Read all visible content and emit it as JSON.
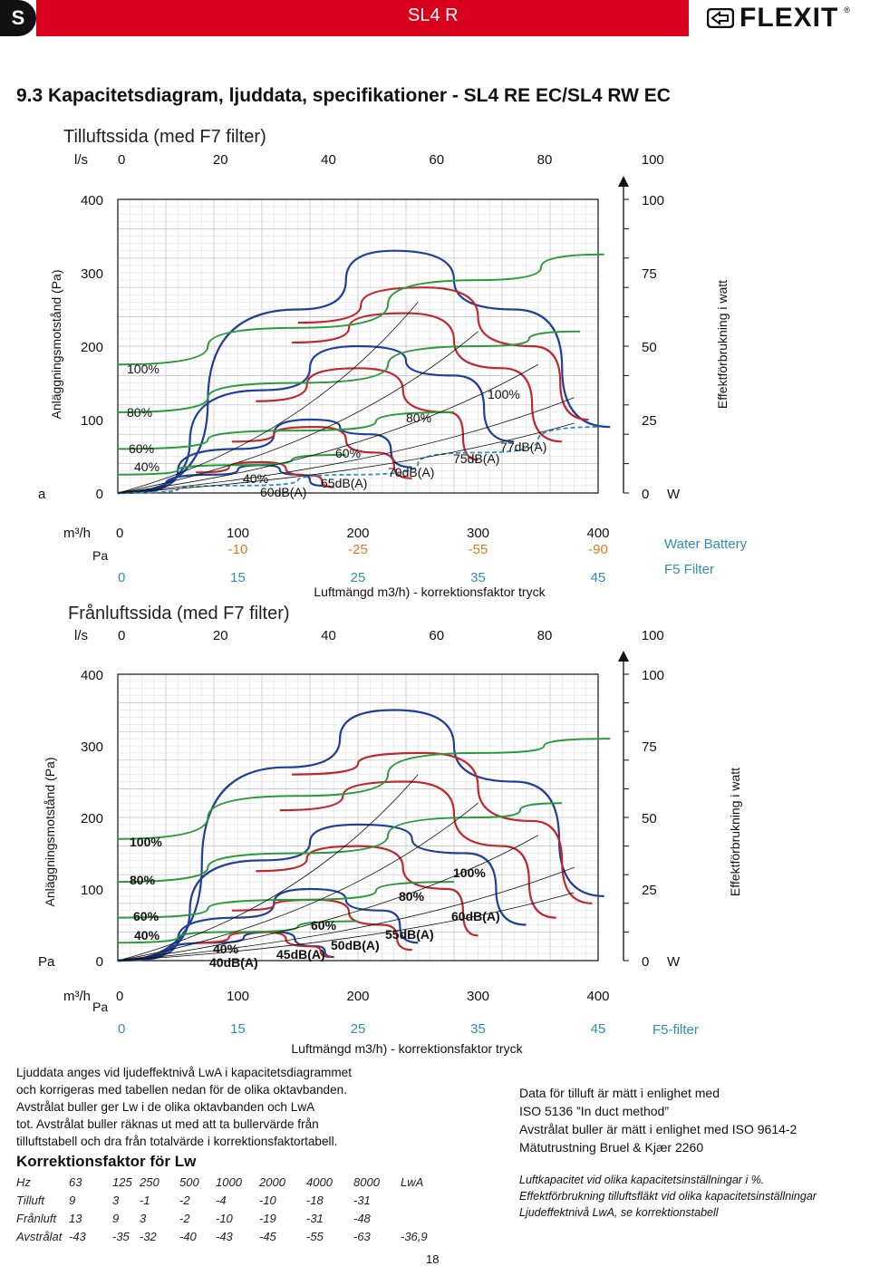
{
  "header": {
    "badge": "S",
    "product": "SL4 R",
    "brand": "FLEXIT",
    "reg": "®",
    "section_title": "9.3  Kapacitetsdiagram, ljuddata, specifikationer - SL4 RE EC/SL4 RW EC"
  },
  "colors": {
    "accent": "#d9001b",
    "green": "#2a9a3a",
    "red": "#c0282e",
    "blue": "#1f3f9a",
    "teal": "#2e8fb0"
  },
  "supply": {
    "subtitle": "Tilluftssida (med F7 filter)",
    "ls_label": "l/s",
    "ls_ticks": [
      "0",
      "20",
      "40",
      "60",
      "80",
      "100"
    ],
    "left_axis_title": "Anläggningsmotstånd (Pa)",
    "right_axis_title": "Effektförbrukning i watt",
    "pa_ticks": [
      "400",
      "300",
      "200",
      "100",
      "0"
    ],
    "pa_unit": "a",
    "w_ticks": [
      "100",
      "75",
      "50",
      "25",
      "0"
    ],
    "w_unit": "W",
    "m3h_label": "m³/h",
    "m3h_ticks": [
      "0",
      "100",
      "200",
      "300",
      "400"
    ],
    "battery_ticks": [
      "-10",
      "-25",
      "-55",
      "-90"
    ],
    "pa2_label": "Pa",
    "pa2_ticks": [
      "0",
      "15",
      "25",
      "35",
      "45"
    ],
    "xlabel": "Luftmängd m3/h) - korrektionsfaktor tryck",
    "legend_water": "Water Battery",
    "legend_filter": "F5 Filter",
    "fan_labels_left": [
      "100%",
      "80%",
      "60%",
      "40%"
    ],
    "fan_labels_right": [
      "100%",
      "80%",
      "60%",
      "40%"
    ],
    "sound_labels": [
      "77dB(A)",
      "75dB(A)",
      "70dB(A)",
      "65dB(A)",
      "60dB(A)"
    ]
  },
  "exhaust": {
    "subtitle": "Frånluftssida (med F7 filter)",
    "ls_label": "l/s",
    "ls_ticks": [
      "0",
      "20",
      "40",
      "60",
      "80",
      "100"
    ],
    "left_axis_title": "Anläggningsmotstånd (Pa)",
    "right_axis_title": "Effektförbrukning i watt",
    "pa_ticks": [
      "400",
      "300",
      "200",
      "100",
      "0"
    ],
    "pa_unit": "Pa",
    "w_ticks": [
      "100",
      "75",
      "50",
      "25",
      "0"
    ],
    "w_unit": "W",
    "m3h_label": "m³/h",
    "m3h_ticks": [
      "0",
      "100",
      "200",
      "300",
      "400"
    ],
    "pa2_label": "Pa",
    "pa2_ticks": [
      "0",
      "15",
      "25",
      "35",
      "45"
    ],
    "xlabel": "Luftmängd m3/h) - korrektionsfaktor tryck",
    "legend_filter": "F5-filter",
    "fan_labels_left": [
      "100%",
      "80%",
      "60%",
      "40%"
    ],
    "fan_labels_right": [
      "100%",
      "80%",
      "60%",
      "40%"
    ],
    "sound_labels": [
      "60dB(A)",
      "55dB(A)",
      "50dB(A)",
      "45dB(A)",
      "40dB(A)"
    ]
  },
  "chart_data": [
    {
      "type": "line",
      "title": "Tilluftssida (med F7 filter)",
      "xlabel": "Luftmängd m3/h) - korrektionsfaktor tryck",
      "ylabel": "Anläggningsmotstånd (Pa)",
      "y2label": "Effektförbrukning i watt",
      "xlim": [
        0,
        400
      ],
      "ylim": [
        0,
        400
      ],
      "y2lim": [
        0,
        100
      ],
      "series": [
        {
          "name": "100%",
          "kind": "fan",
          "color": "blue",
          "points": [
            [
              0,
              0
            ],
            [
              150,
              250
            ],
            [
              230,
              330
            ],
            [
              330,
              250
            ],
            [
              410,
              90
            ]
          ]
        },
        {
          "name": "80%",
          "kind": "fan",
          "color": "blue",
          "points": [
            [
              0,
              0
            ],
            [
              120,
              140
            ],
            [
              200,
              200
            ],
            [
              280,
              160
            ],
            [
              330,
              70
            ]
          ]
        },
        {
          "name": "60%",
          "kind": "fan",
          "color": "blue",
          "points": [
            [
              0,
              0
            ],
            [
              100,
              60
            ],
            [
              160,
              100
            ],
            [
              210,
              80
            ],
            [
              245,
              35
            ]
          ]
        },
        {
          "name": "40%",
          "kind": "fan",
          "color": "blue",
          "points": [
            [
              0,
              0
            ],
            [
              80,
              25
            ],
            [
              120,
              38
            ],
            [
              150,
              25
            ],
            [
              170,
              10
            ]
          ]
        },
        {
          "name": "77dB(A)",
          "kind": "sound",
          "color": "red",
          "points": [
            [
              150,
              232
            ],
            [
              255,
              280
            ],
            [
              345,
              200
            ],
            [
              392,
              100
            ]
          ]
        },
        {
          "name": "75dB(A)",
          "kind": "sound",
          "color": "red",
          "points": [
            [
              145,
              205
            ],
            [
              240,
              245
            ],
            [
              320,
              170
            ],
            [
              370,
              70
            ]
          ]
        },
        {
          "name": "70dB(A)",
          "kind": "sound",
          "color": "red",
          "points": [
            [
              115,
              125
            ],
            [
              200,
              170
            ],
            [
              275,
              110
            ],
            [
              300,
              45
            ]
          ]
        },
        {
          "name": "65dB(A)",
          "kind": "sound",
          "color": "red",
          "points": [
            [
              95,
              70
            ],
            [
              165,
              90
            ],
            [
              215,
              55
            ],
            [
              245,
              20
            ]
          ]
        },
        {
          "name": "60dB(A)",
          "kind": "sound",
          "color": "red",
          "points": [
            [
              65,
              28
            ],
            [
              120,
              42
            ],
            [
              160,
              24
            ],
            [
              180,
              8
            ]
          ]
        },
        {
          "name": "W 100%",
          "kind": "power",
          "color": "green",
          "points": [
            [
              0,
              175
            ],
            [
              150,
              225
            ],
            [
              300,
              290
            ],
            [
              405,
              325
            ]
          ]
        },
        {
          "name": "W 80%",
          "kind": "power",
          "color": "green",
          "points": [
            [
              0,
              110
            ],
            [
              150,
              150
            ],
            [
              300,
              200
            ],
            [
              385,
              220
            ]
          ]
        },
        {
          "name": "W 60%",
          "kind": "power",
          "color": "green",
          "points": [
            [
              0,
              60
            ],
            [
              150,
              85
            ],
            [
              280,
              110
            ]
          ]
        },
        {
          "name": "W 40%",
          "kind": "power",
          "color": "green",
          "points": [
            [
              0,
              25
            ],
            [
              100,
              38
            ],
            [
              190,
              52
            ]
          ]
        },
        {
          "name": "Water Battery",
          "kind": "system",
          "color": "teal",
          "points": [
            [
              0,
              0
            ],
            [
              100,
              10
            ],
            [
              200,
              25
            ],
            [
              300,
              55
            ],
            [
              400,
              90
            ]
          ]
        }
      ]
    },
    {
      "type": "line",
      "title": "Frånluftssida (med F7 filter)",
      "xlabel": "Luftmängd m3/h) - korrektionsfaktor tryck",
      "ylabel": "Anläggningsmotstånd (Pa)",
      "y2label": "Effektförbrukning i watt",
      "xlim": [
        0,
        400
      ],
      "ylim": [
        0,
        400
      ],
      "y2lim": [
        0,
        100
      ],
      "series": [
        {
          "name": "100%",
          "kind": "fan",
          "color": "blue",
          "points": [
            [
              0,
              0
            ],
            [
              140,
              270
            ],
            [
              230,
              350
            ],
            [
              330,
              250
            ],
            [
              405,
              90
            ]
          ]
        },
        {
          "name": "80%",
          "kind": "fan",
          "color": "blue",
          "points": [
            [
              0,
              0
            ],
            [
              120,
              140
            ],
            [
              200,
              190
            ],
            [
              290,
              150
            ],
            [
              340,
              50
            ]
          ]
        },
        {
          "name": "60%",
          "kind": "fan",
          "color": "blue",
          "points": [
            [
              0,
              0
            ],
            [
              100,
              60
            ],
            [
              160,
              100
            ],
            [
              220,
              70
            ],
            [
              250,
              25
            ]
          ]
        },
        {
          "name": "40%",
          "kind": "fan",
          "color": "blue",
          "points": [
            [
              0,
              0
            ],
            [
              80,
              25
            ],
            [
              130,
              40
            ],
            [
              165,
              20
            ],
            [
              180,
              5
            ]
          ]
        },
        {
          "name": "60dB(A)",
          "kind": "sound",
          "color": "red",
          "points": [
            [
              145,
              260
            ],
            [
              255,
              290
            ],
            [
              345,
              195
            ],
            [
              395,
              80
            ]
          ]
        },
        {
          "name": "55dB(A)",
          "kind": "sound",
          "color": "red",
          "points": [
            [
              135,
              210
            ],
            [
              240,
              250
            ],
            [
              320,
              160
            ],
            [
              365,
              60
            ]
          ]
        },
        {
          "name": "50dB(A)",
          "kind": "sound",
          "color": "red",
          "points": [
            [
              115,
              125
            ],
            [
              200,
              160
            ],
            [
              275,
              100
            ],
            [
              300,
              35
            ]
          ]
        },
        {
          "name": "45dB(A)",
          "kind": "sound",
          "color": "red",
          "points": [
            [
              95,
              70
            ],
            [
              165,
              85
            ],
            [
              220,
              50
            ],
            [
              245,
              15
            ]
          ]
        },
        {
          "name": "40dB(A)",
          "kind": "sound",
          "color": "red",
          "points": [
            [
              65,
              25
            ],
            [
              120,
              40
            ],
            [
              160,
              20
            ],
            [
              178,
              5
            ]
          ]
        },
        {
          "name": "W 100%",
          "kind": "power",
          "color": "green",
          "points": [
            [
              0,
              170
            ],
            [
              150,
              230
            ],
            [
              300,
              290
            ],
            [
              410,
              310
            ]
          ]
        },
        {
          "name": "W 80%",
          "kind": "power",
          "color": "green",
          "points": [
            [
              0,
              110
            ],
            [
              150,
              150
            ],
            [
              300,
              200
            ],
            [
              370,
              220
            ]
          ]
        },
        {
          "name": "W 60%",
          "kind": "power",
          "color": "green",
          "points": [
            [
              0,
              60
            ],
            [
              150,
              85
            ],
            [
              280,
              110
            ]
          ]
        },
        {
          "name": "W 40%",
          "kind": "power",
          "color": "green",
          "points": [
            [
              0,
              25
            ],
            [
              100,
              40
            ],
            [
              200,
              55
            ]
          ]
        }
      ]
    }
  ],
  "notes": {
    "left": [
      "Ljuddata anges vid ljudeffektnivå LwA i kapacitetsdiagrammet",
      "och korrigeras med tabellen nedan för de olika oktavbanden.",
      "Avstrålat buller ger Lw i de olika oktavbanden och LwA",
      "tot. Avstrålat buller räknas ut med att ta bullervärde från",
      "tilluftstabell och dra från totalvärde i korrektionsfaktortabell."
    ],
    "ktitle": "Korrektionsfaktor för Lw",
    "table": [
      [
        "Hz",
        "63",
        "125",
        "250",
        "500",
        "1000",
        "2000",
        "4000",
        "8000",
        "LwA"
      ],
      [
        "Tilluft",
        "9",
        "3",
        "-1",
        "-2",
        "-4",
        "-10",
        "-18",
        "-31",
        ""
      ],
      [
        "Frånluft",
        "13",
        "9",
        "3",
        "-2",
        "-10",
        "-19",
        "-31",
        "-48",
        ""
      ],
      [
        "Avstrålat",
        "-43",
        "-35",
        "-32",
        "-40",
        "-43",
        "-45",
        "-55",
        "-63",
        "-36,9"
      ]
    ],
    "right": [
      "Data för tilluft är mätt i enlighet med",
      "ISO 5136 ”In duct method”",
      "Avstrålat buller är mätt i enlighet med ISO 9614-2",
      "Mätutrustning Bruel & Kjær 2260"
    ],
    "right_small": [
      "Luftkapacitet vid olika kapacitetsinställningar i %.",
      "Effektförbrukning tilluftsfläkt vid olika kapacitetsinställningar",
      "Ljudeffektnivå LwA, se korrektionstabell"
    ]
  },
  "page_number": "18"
}
